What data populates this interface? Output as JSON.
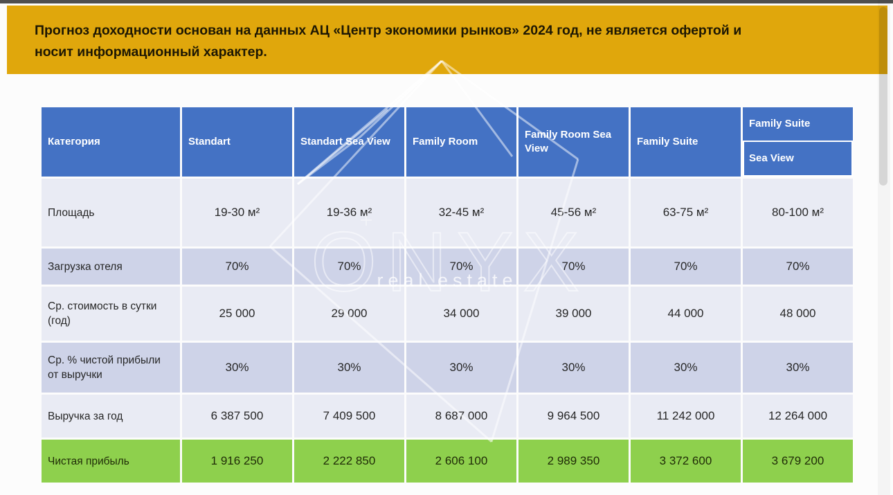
{
  "banner": {
    "background": "#E0A70C",
    "line1": "Прогноз доходности основан на данных АЦ «Центр экономики рынков» 2024 год, не является офертой и",
    "line2": "носит информационный характер."
  },
  "watermark": {
    "brand": "ONYX",
    "subtitle": "real estate"
  },
  "table": {
    "colors": {
      "header_bg": "#4472C4",
      "header_text": "#FFFFFF",
      "row_light": "#E9EBF4",
      "row_dark": "#CED3E8",
      "total_bg": "#8ED04D",
      "body_text": "#262626"
    },
    "header": {
      "category_label": "Категория",
      "columns": [
        "Standart",
        "Standart Sea View",
        "Family Room",
        "Family Room Sea View",
        "Family Suite"
      ],
      "split_column": {
        "top": "Family Suite",
        "bottom": "Sea View"
      }
    },
    "rows": [
      {
        "label": "Площадь",
        "shade": "light",
        "values": [
          "19-30 м²",
          "19-36 м²",
          "32-45 м²",
          "45-56 м²",
          "63-75 м²",
          "80-100 м²"
        ]
      },
      {
        "label": "Загрузка отеля",
        "shade": "dark",
        "values": [
          "70%",
          "70%",
          "70%",
          "70%",
          "70%",
          "70%"
        ]
      },
      {
        "label": "Ср. стоимость в сутки (год)",
        "shade": "light",
        "values": [
          "25 000",
          "29 000",
          "34 000",
          "39 000",
          "44 000",
          "48 000"
        ]
      },
      {
        "label": "Ср. % чистой прибыли от выручки",
        "shade": "dark",
        "values": [
          "30%",
          "30%",
          "30%",
          "30%",
          "30%",
          "30%"
        ]
      },
      {
        "label": "Выручка за год",
        "shade": "light",
        "values": [
          "6 387 500",
          "7 409 500",
          "8 687 000",
          "9 964 500",
          "11 242 000",
          "12 264 000"
        ]
      },
      {
        "label": "Чистая прибыль",
        "shade": "green",
        "values": [
          "1 916 250",
          "2 222 850",
          "2 606 100",
          "2 989 350",
          "3 372 600",
          "3 679 200"
        ]
      }
    ]
  }
}
